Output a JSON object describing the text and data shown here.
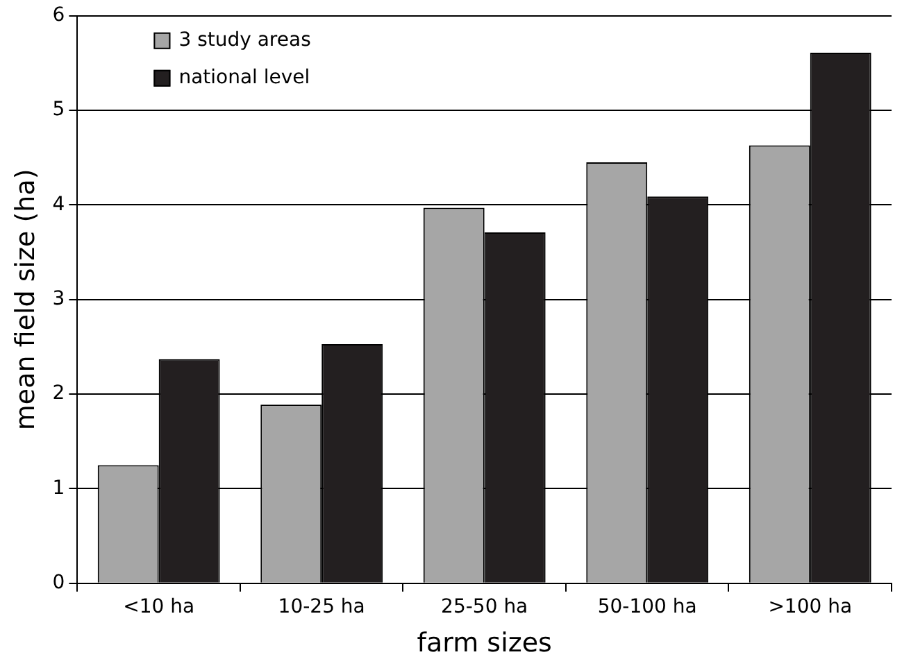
{
  "chart_data": {
    "type": "bar",
    "xlabel": "farm sizes",
    "ylabel": "mean field size (ha)",
    "categories": [
      "<10 ha",
      "10-25 ha",
      "25-50 ha",
      "50-100 ha",
      ">100 ha"
    ],
    "series": [
      {
        "name": "3 study areas",
        "color": "#a6a6a6",
        "values": [
          1.25,
          1.89,
          3.97,
          4.45,
          4.63
        ]
      },
      {
        "name": "national level",
        "color": "#231f20",
        "values": [
          2.37,
          2.53,
          3.71,
          4.09,
          5.61
        ]
      }
    ],
    "ylim": [
      0,
      6
    ],
    "yticks": [
      0,
      1,
      2,
      3,
      4,
      5,
      6
    ],
    "grid": "y",
    "legend": "top left"
  }
}
